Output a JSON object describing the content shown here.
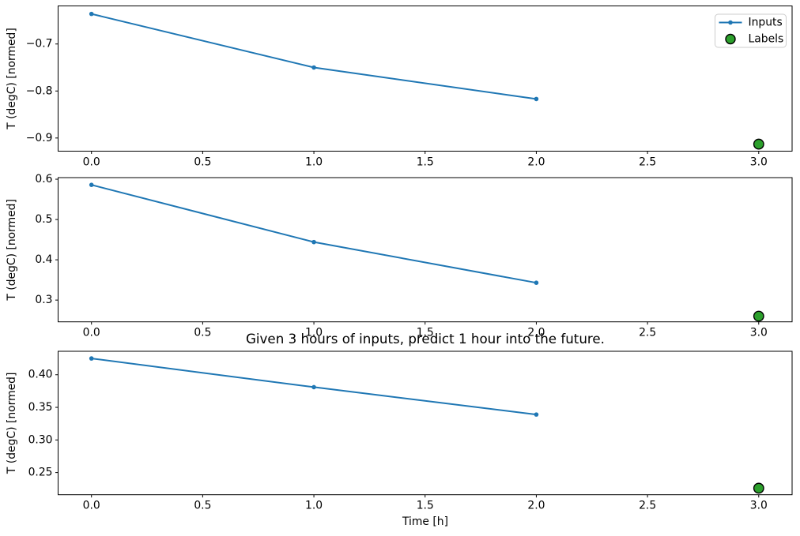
{
  "figure": {
    "title": "Given 3 hours of inputs, predict 1 hour into the future.",
    "xlabel": "Time [h]",
    "background": "#ffffff",
    "text_color": "#000000",
    "accent_blue": "#1f77b4",
    "accent_green": "#2ca02c",
    "legend": {
      "position": "top-right",
      "items": [
        {
          "label": "Inputs",
          "marker": "line-dot-icon",
          "color": "#1f77b4"
        },
        {
          "label": "Labels",
          "marker": "circle-icon",
          "color": "#2ca02c",
          "edge_color": "#000000"
        }
      ]
    }
  },
  "chart_data": [
    {
      "type": "line",
      "title": "",
      "xlabel": "",
      "ylabel": "T (degC) [normed]",
      "xlim": [
        -0.15,
        3.15
      ],
      "ylim": [
        -0.928,
        -0.619
      ],
      "grid": false,
      "x_tick_values": [
        0,
        0.5,
        1,
        1.5,
        2,
        2.5,
        3
      ],
      "x_tick_labels": [
        "0.0",
        "0.5",
        "1.0",
        "1.5",
        "2.0",
        "2.5",
        "3.0"
      ],
      "y_tick_values": [
        -0.7,
        -0.8,
        -0.9
      ],
      "y_tick_labels": [
        "−0.7",
        "−0.8",
        "−0.9"
      ],
      "show_legend": true,
      "series": [
        {
          "name": "Inputs",
          "type": "line",
          "color": "#1f77b4",
          "x": [
            0,
            1,
            2
          ],
          "y": [
            -0.636,
            -0.75,
            -0.817
          ]
        },
        {
          "name": "Labels",
          "type": "scatter",
          "color": "#2ca02c",
          "edge_color": "#000000",
          "x": [
            3
          ],
          "y": [
            -0.913
          ]
        }
      ]
    },
    {
      "type": "line",
      "title": "",
      "xlabel": "",
      "ylabel": "T (degC) [normed]",
      "xlim": [
        -0.15,
        3.15
      ],
      "ylim": [
        0.246,
        0.604
      ],
      "grid": false,
      "x_tick_values": [
        0,
        0.5,
        1,
        1.5,
        2,
        2.5,
        3
      ],
      "x_tick_labels": [
        "0.0",
        "0.5",
        "1.0",
        "1.5",
        "2.0",
        "2.5",
        "3.0"
      ],
      "y_tick_values": [
        0.6,
        0.5,
        0.4,
        0.3
      ],
      "y_tick_labels": [
        "0.6",
        "0.5",
        "0.4",
        "0.3"
      ],
      "show_legend": false,
      "series": [
        {
          "name": "Inputs",
          "type": "line",
          "color": "#1f77b4",
          "x": [
            0,
            1,
            2
          ],
          "y": [
            0.586,
            0.444,
            0.343
          ]
        },
        {
          "name": "Labels",
          "type": "scatter",
          "color": "#2ca02c",
          "edge_color": "#000000",
          "x": [
            3
          ],
          "y": [
            0.26
          ]
        }
      ]
    },
    {
      "type": "line",
      "title": "Given 3 hours of inputs, predict 1 hour into the future.",
      "xlabel": "Time [h]",
      "ylabel": "T (degC) [normed]",
      "xlim": [
        -0.15,
        3.15
      ],
      "ylim": [
        0.216,
        0.436
      ],
      "grid": false,
      "x_tick_values": [
        0,
        0.5,
        1,
        1.5,
        2,
        2.5,
        3
      ],
      "x_tick_labels": [
        "0.0",
        "0.5",
        "1.0",
        "1.5",
        "2.0",
        "2.5",
        "3.0"
      ],
      "y_tick_values": [
        0.4,
        0.35,
        0.3,
        0.25
      ],
      "y_tick_labels": [
        "0.40",
        "0.35",
        "0.30",
        "0.25"
      ],
      "show_legend": false,
      "series": [
        {
          "name": "Inputs",
          "type": "line",
          "color": "#1f77b4",
          "x": [
            0,
            1,
            2
          ],
          "y": [
            0.425,
            0.381,
            0.339
          ]
        },
        {
          "name": "Labels",
          "type": "scatter",
          "color": "#2ca02c",
          "edge_color": "#000000",
          "x": [
            3
          ],
          "y": [
            0.226
          ]
        }
      ]
    }
  ]
}
